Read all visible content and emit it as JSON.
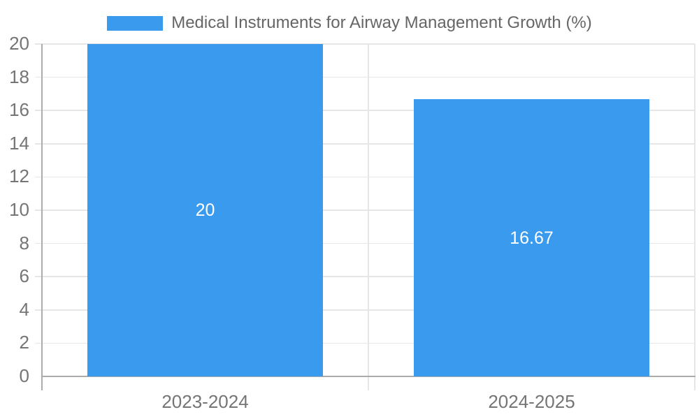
{
  "chart_data": {
    "type": "bar",
    "legend": {
      "label": "Medical Instruments for Airway Management Growth (%)",
      "position": "top-center"
    },
    "categories": [
      "2023-2024",
      "2024-2025"
    ],
    "series": [
      {
        "name": "Medical Instruments for Airway Management Growth (%)",
        "values": [
          20,
          16.67
        ]
      }
    ],
    "value_labels": [
      "20",
      "16.67"
    ],
    "xlabel": "",
    "ylabel": "",
    "ylim": [
      0,
      20
    ],
    "ytick_step": 2,
    "yticks": [
      0,
      2,
      4,
      6,
      8,
      10,
      12,
      14,
      16,
      18,
      20
    ],
    "grid": true,
    "colors": {
      "bar": "#3A9AEE",
      "value_label": "#FFFFFF",
      "tick_label": "#757575",
      "legend_text": "#666666",
      "gridline": "#E6E6E6",
      "axis_line": "#ACACAC",
      "background": "#FFFFFF"
    }
  }
}
